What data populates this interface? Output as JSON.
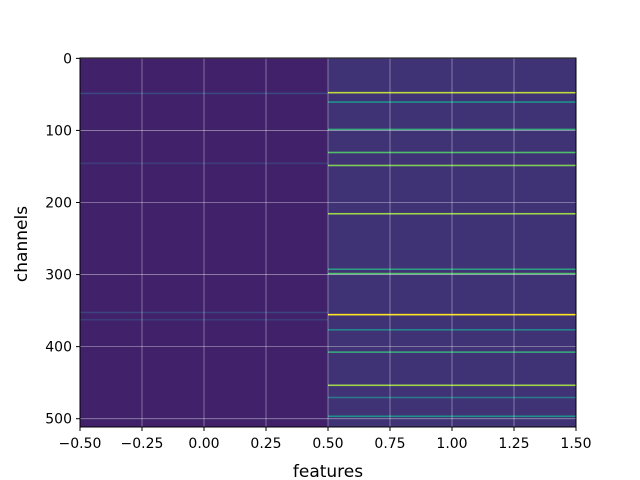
{
  "chart_data": {
    "type": "heatmap",
    "title": "",
    "xlabel": "features",
    "ylabel": "channels",
    "xlim": [
      -0.5,
      1.5
    ],
    "ylim": [
      511.5,
      -0.5
    ],
    "grid": true,
    "colormap": "viridis",
    "x_ticks": [
      -0.5,
      -0.25,
      0.0,
      0.25,
      0.5,
      0.75,
      1.0,
      1.25,
      1.5
    ],
    "x_tick_labels": [
      "−0.50",
      "−0.25",
      "0.00",
      "0.25",
      "0.50",
      "0.75",
      "1.00",
      "1.25",
      "1.50"
    ],
    "y_ticks": [
      0,
      100,
      200,
      300,
      400,
      500
    ],
    "y_tick_labels": [
      "0",
      "100",
      "200",
      "300",
      "400",
      "500"
    ],
    "columns": [
      {
        "feature": 0,
        "base_value": 0.1,
        "highlights": [
          {
            "channel": 48,
            "value": 0.22
          },
          {
            "channel": 145,
            "value": 0.18
          },
          {
            "channel": 352,
            "value": 0.2
          },
          {
            "channel": 362,
            "value": 0.18
          }
        ]
      },
      {
        "feature": 1,
        "base_value": 0.15,
        "highlights": [
          {
            "channel": 47,
            "value": 0.9
          },
          {
            "channel": 60,
            "value": 0.5
          },
          {
            "channel": 98,
            "value": 0.6
          },
          {
            "channel": 130,
            "value": 0.7
          },
          {
            "channel": 148,
            "value": 0.8
          },
          {
            "channel": 215,
            "value": 0.85
          },
          {
            "channel": 292,
            "value": 0.55
          },
          {
            "channel": 298,
            "value": 0.7
          },
          {
            "channel": 355,
            "value": 1.0
          },
          {
            "channel": 376,
            "value": 0.45
          },
          {
            "channel": 407,
            "value": 0.6
          },
          {
            "channel": 453,
            "value": 0.85
          },
          {
            "channel": 470,
            "value": 0.4
          },
          {
            "channel": 496,
            "value": 0.5
          }
        ]
      }
    ]
  }
}
